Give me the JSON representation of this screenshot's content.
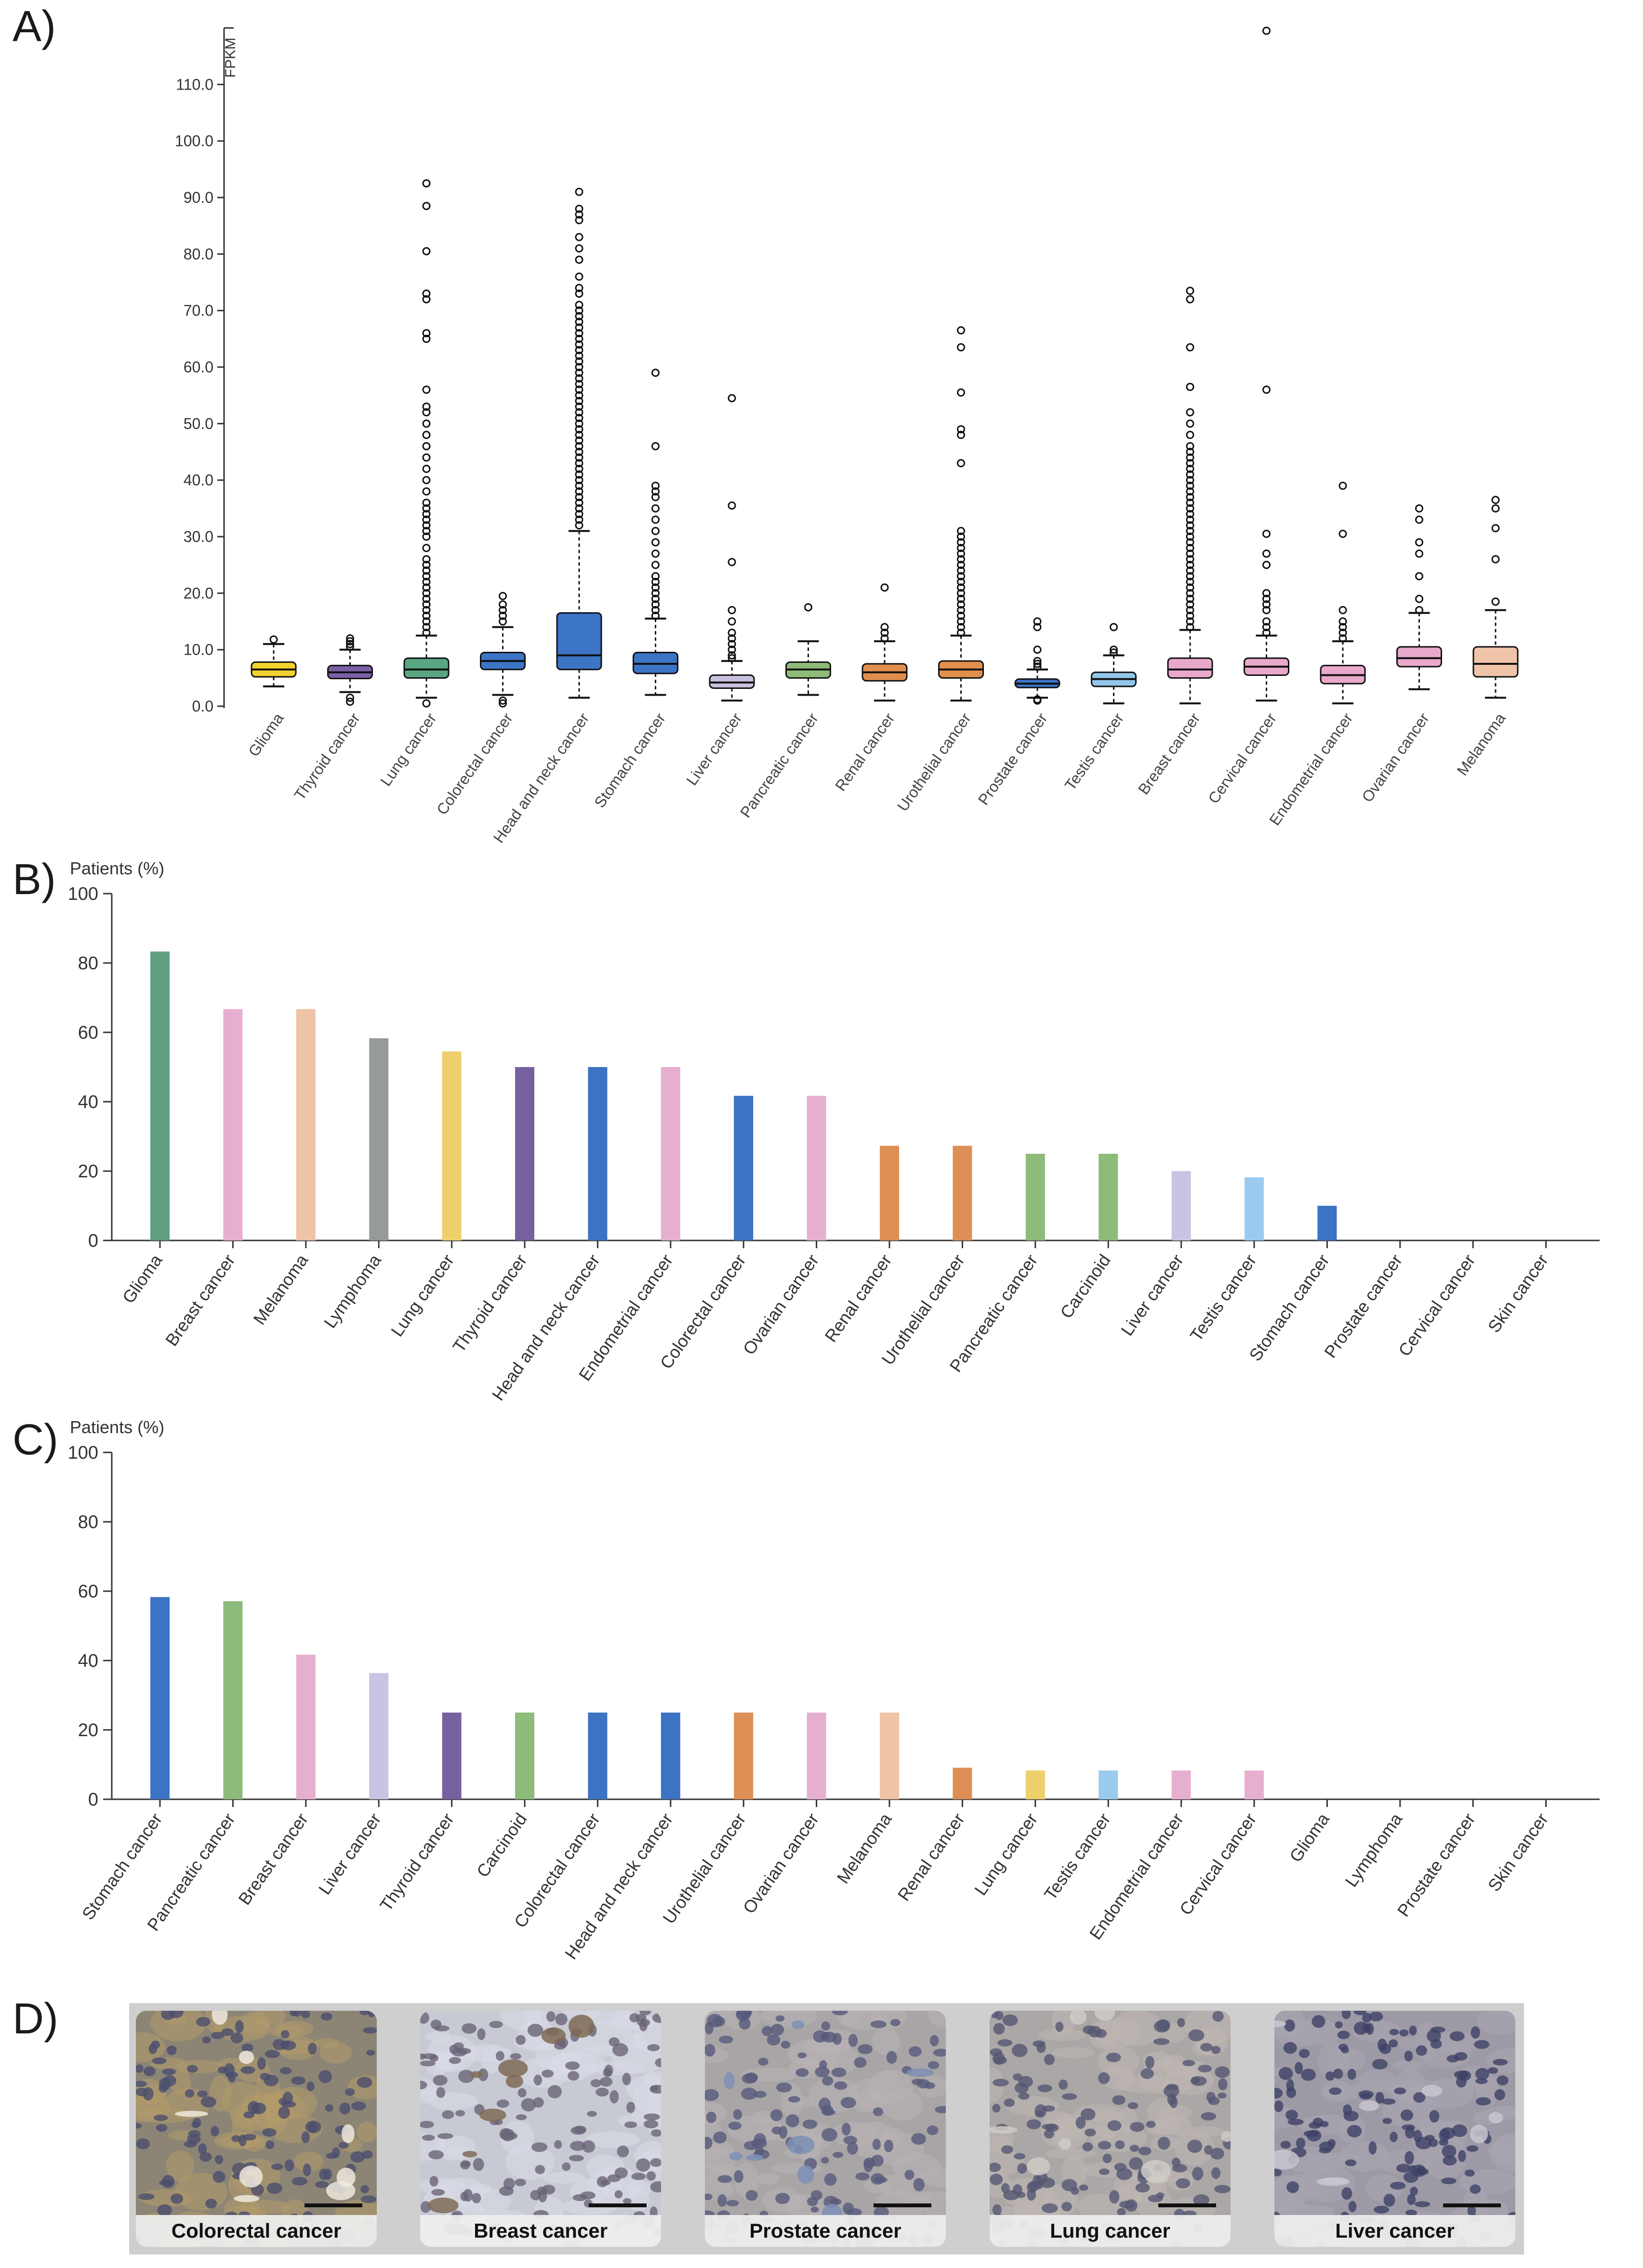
{
  "panels": {
    "a": "A)",
    "b": "B)",
    "c": "C)",
    "d": "D)"
  },
  "chart_data": [
    {
      "id": "A",
      "type": "boxplot",
      "ylabel": "FPKM",
      "ylim": [
        0,
        120
      ],
      "yticks": [
        "0.0",
        "10.0",
        "20.0",
        "30.0",
        "40.0",
        "50.0",
        "60.0",
        "70.0",
        "80.0",
        "90.0",
        "100.0",
        "110.0"
      ],
      "series": [
        {
          "name": "Glioma",
          "color": "#f2d22e",
          "whisker_low": 3.5,
          "q1": 5.2,
          "median": 6.5,
          "q3": 7.8,
          "whisker_high": 11,
          "outliers": [
            11.8
          ]
        },
        {
          "name": "Thyroid cancer",
          "color": "#7b5fa5",
          "whisker_low": 2.5,
          "q1": 4.9,
          "median": 6,
          "q3": 7.2,
          "whisker_high": 10,
          "outliers": [
            0.8,
            1.5,
            10.5,
            11,
            11.5,
            12
          ]
        },
        {
          "name": "Lung cancer",
          "color": "#5aa683",
          "whisker_low": 1.5,
          "q1": 5,
          "median": 6.5,
          "q3": 8.5,
          "whisker_high": 12.5,
          "outliers": [
            0.5,
            13,
            14,
            15,
            16,
            17,
            18,
            19,
            20,
            21,
            22,
            23,
            24,
            25,
            26,
            28,
            30,
            31,
            32,
            33,
            34,
            35,
            36,
            38,
            40,
            42,
            44,
            46,
            48,
            50,
            52,
            53,
            56,
            65,
            66,
            72,
            73,
            80.5,
            88.5,
            92.5
          ]
        },
        {
          "name": "Colorectal cancer",
          "color": "#3c74c6",
          "whisker_low": 2,
          "q1": 6.5,
          "median": 8,
          "q3": 9.5,
          "whisker_high": 14,
          "outliers": [
            0.5,
            1,
            15,
            16,
            17,
            18,
            19.5
          ]
        },
        {
          "name": "Head and neck cancer",
          "color": "#3c74c6",
          "whisker_low": 1.5,
          "q1": 6.5,
          "median": 9,
          "q3": 16.5,
          "whisker_high": 31,
          "outliers": [
            32,
            33,
            34,
            35,
            36,
            37,
            38,
            39,
            40,
            41,
            42,
            43,
            44,
            45,
            46,
            47,
            48,
            49,
            50,
            51,
            52,
            53,
            54,
            55,
            56,
            57,
            58,
            59,
            60,
            61,
            62,
            63,
            64,
            65,
            66,
            67,
            68,
            69,
            70,
            71,
            73,
            74,
            76,
            79,
            81,
            83,
            86,
            87,
            88,
            91
          ]
        },
        {
          "name": "Stomach cancer",
          "color": "#3c74c6",
          "whisker_low": 2,
          "q1": 5.8,
          "median": 7.5,
          "q3": 9.5,
          "whisker_high": 15.5,
          "outliers": [
            16,
            17,
            18,
            19,
            20,
            21,
            22,
            23,
            25,
            27,
            29,
            31,
            33,
            35,
            37,
            38,
            39,
            46,
            59
          ]
        },
        {
          "name": "Liver cancer",
          "color": "#c9c0e0",
          "whisker_low": 1,
          "q1": 3.2,
          "median": 4.2,
          "q3": 5.5,
          "whisker_high": 8,
          "outliers": [
            8.5,
            9,
            10,
            11,
            12,
            13,
            15,
            17,
            25.5,
            35.5,
            54.5
          ]
        },
        {
          "name": "Pancreatic cancer",
          "color": "#8fba78",
          "whisker_low": 2,
          "q1": 5,
          "median": 6.5,
          "q3": 7.8,
          "whisker_high": 11.5,
          "outliers": [
            17.5
          ]
        },
        {
          "name": "Renal cancer",
          "color": "#e08f4e",
          "whisker_low": 1,
          "q1": 4.5,
          "median": 6,
          "q3": 7.5,
          "whisker_high": 11.5,
          "outliers": [
            12,
            13,
            14,
            21
          ]
        },
        {
          "name": "Urothelial cancer",
          "color": "#e08f4e",
          "whisker_low": 1,
          "q1": 5,
          "median": 6.5,
          "q3": 8,
          "whisker_high": 12.5,
          "outliers": [
            13,
            14,
            15,
            16,
            17,
            18,
            19,
            20,
            21,
            22,
            23,
            24,
            25,
            26,
            27,
            28,
            29,
            30,
            31,
            43,
            48,
            49,
            55.5,
            63.5,
            66.5
          ]
        },
        {
          "name": "Prostate cancer",
          "color": "#3c74c6",
          "whisker_low": 1.5,
          "q1": 3.3,
          "median": 4,
          "q3": 4.8,
          "whisker_high": 6.5,
          "outliers": [
            1,
            1.2,
            7,
            7.5,
            8,
            10,
            14,
            15
          ]
        },
        {
          "name": "Testis cancer",
          "color": "#92c7ea",
          "whisker_low": 0.5,
          "q1": 3.5,
          "median": 4.8,
          "q3": 6,
          "whisker_high": 9,
          "outliers": [
            9.5,
            10,
            14
          ]
        },
        {
          "name": "Breast cancer",
          "color": "#e9a8cc",
          "whisker_low": 0.5,
          "q1": 5,
          "median": 6.5,
          "q3": 8.5,
          "whisker_high": 13.5,
          "outliers": [
            14,
            15,
            16,
            17,
            18,
            19,
            20,
            21,
            22,
            23,
            24,
            25,
            26,
            27,
            28,
            29,
            30,
            31,
            32,
            33,
            34,
            35,
            36,
            37,
            38,
            39,
            40,
            41,
            42,
            43,
            44,
            45,
            46,
            48,
            50,
            52,
            56.5,
            63.5,
            72,
            73.5
          ]
        },
        {
          "name": "Cervical cancer",
          "color": "#e9a8cc",
          "whisker_low": 1,
          "q1": 5.5,
          "median": 7,
          "q3": 8.5,
          "whisker_high": 12.5,
          "outliers": [
            13,
            14,
            15,
            17,
            18,
            19,
            20,
            25,
            27,
            30.5,
            56,
            120
          ]
        },
        {
          "name": "Endometrial cancer",
          "color": "#e9a8cc",
          "whisker_low": 0.5,
          "q1": 4,
          "median": 5.5,
          "q3": 7.2,
          "whisker_high": 11.5,
          "outliers": [
            12,
            13,
            14,
            15,
            17,
            30.5,
            39
          ]
        },
        {
          "name": "Ovarian cancer",
          "color": "#e9a8cc",
          "whisker_low": 3,
          "q1": 7,
          "median": 8.5,
          "q3": 10.5,
          "whisker_high": 16.5,
          "outliers": [
            17,
            19,
            23,
            27,
            29,
            33,
            35
          ]
        },
        {
          "name": "Melanoma",
          "color": "#f0c4a8",
          "whisker_low": 1.5,
          "q1": 5.2,
          "median": 7.5,
          "q3": 10.5,
          "whisker_high": 17,
          "outliers": [
            18.5,
            26,
            31.5,
            35,
            36.5
          ]
        }
      ]
    },
    {
      "id": "B",
      "type": "bar",
      "ylabel": "Patients (%)",
      "ylim": [
        0,
        100
      ],
      "yticks": [
        "0",
        "20",
        "40",
        "60",
        "80",
        "100"
      ],
      "categories": [
        "Glioma",
        "Breast cancer",
        "Melanoma",
        "Lymphoma",
        "Lung cancer",
        "Thyroid cancer",
        "Head and neck cancer",
        "Endometrial cancer",
        "Colorectal cancer",
        "Ovarian cancer",
        "Renal cancer",
        "Urothelial cancer",
        "Pancreatic cancer",
        "Carcinoid",
        "Liver cancer",
        "Testis cancer",
        "Stomach cancer",
        "Prostate cancer",
        "Cervical cancer",
        "Skin cancer"
      ],
      "values": [
        83.3,
        66.7,
        66.7,
        58.3,
        54.5,
        50,
        50,
        50,
        41.7,
        41.7,
        27.3,
        27.3,
        25,
        25,
        20,
        18.2,
        10,
        0,
        0,
        0
      ],
      "colors": [
        "#5f9e80",
        "#e6afd0",
        "#efc3a6",
        "#969a9b",
        "#eecf6c",
        "#7760a0",
        "#3c73c2",
        "#e6afd0",
        "#3c73c2",
        "#e6afd0",
        "#dd8f55",
        "#dd8f55",
        "#8dbb7a",
        "#8dbb7a",
        "#cbc3e3",
        "#9acbee",
        "#3c73c2",
        "#3c73c2",
        "#e6afd0",
        "#555555"
      ]
    },
    {
      "id": "C",
      "type": "bar",
      "ylabel": "Patients (%)",
      "ylim": [
        0,
        100
      ],
      "yticks": [
        "0",
        "20",
        "40",
        "60",
        "80",
        "100"
      ],
      "categories": [
        "Stomach cancer",
        "Pancreatic cancer",
        "Breast cancer",
        "Liver cancer",
        "Thyroid cancer",
        "Carcinoid",
        "Colorectal cancer",
        "Head and neck cancer",
        "Urothelial cancer",
        "Ovarian cancer",
        "Melanoma",
        "Renal cancer",
        "Lung cancer",
        "Testis cancer",
        "Endometrial cancer",
        "Cervical cancer",
        "Glioma",
        "Lymphoma",
        "Prostate cancer",
        "Skin cancer"
      ],
      "values": [
        58.3,
        57.1,
        41.7,
        36.4,
        25,
        25,
        25,
        25,
        25,
        25,
        25,
        9.1,
        8.3,
        8.3,
        8.3,
        8.3,
        0,
        0,
        0,
        0
      ],
      "colors": [
        "#3c73c2",
        "#8dbb7a",
        "#e6afd0",
        "#cbc3e3",
        "#7760a0",
        "#8dbb7a",
        "#3c73c2",
        "#3c73c2",
        "#dd8f55",
        "#e6afd0",
        "#efc3a6",
        "#dd8f55",
        "#eecf6c",
        "#9acbee",
        "#e6afd0",
        "#e6afd0",
        "#5f9e80",
        "#969a9b",
        "#3c73c2",
        "#555555"
      ]
    }
  ],
  "tissue_images": [
    {
      "caption": "Colorectal cancer"
    },
    {
      "caption": "Breast cancer"
    },
    {
      "caption": "Prostate cancer"
    },
    {
      "caption": "Lung cancer"
    },
    {
      "caption": "Liver cancer"
    }
  ]
}
